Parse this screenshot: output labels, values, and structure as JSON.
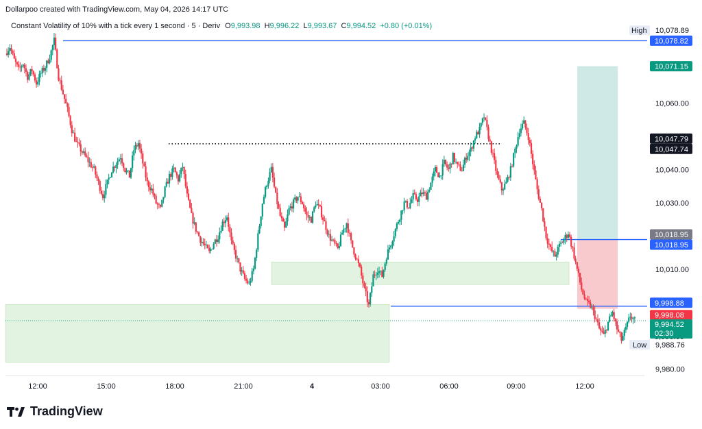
{
  "header": {
    "credit": "Dollarpoo created with TradingView.com, May 04, 2026 14:17 UTC",
    "symbol": "Constant Volatility of 10% with a tick every 1 second · 5 · Deriv",
    "o_label": "O",
    "o_value": "9,993.98",
    "h_label": "H",
    "h_value": "9,996.22",
    "l_label": "L",
    "l_value": "9,993.67",
    "c_label": "C",
    "c_value": "9,994.52",
    "change": "+0.80 (+0.01%)"
  },
  "brand": {
    "name": "TradingView"
  },
  "colors": {
    "up": "#089981",
    "down": "#f23645",
    "blue_line": "#2962ff",
    "profit_zone": "#cfeae6",
    "loss_zone": "#f8c9cd",
    "demand_zone": "#e3f3e1"
  },
  "chart_data": {
    "type": "candlestick",
    "x_ticks": [
      "12:00",
      "15:00",
      "18:00",
      "21:00",
      "4",
      "03:00",
      "06:00",
      "09:00",
      "12:00"
    ],
    "y_ticks": [
      "10,060.00",
      "10,040.00",
      "10,030.00",
      "10,010.00",
      "9,980.00"
    ],
    "ylim": [
      9978,
      10082
    ],
    "y_tick_values": [
      10060,
      10040,
      10030,
      10010,
      9980
    ],
    "high_label": "High",
    "high_value": "10,078.89",
    "low_label": "Low",
    "low_value": "9,988.76",
    "price_labels": {
      "top_line": "10,078.82",
      "take_profit": "10,071.15",
      "dark_1": "10,047.79",
      "dark_2": "10,047.74",
      "entry_gray": "10,018.95",
      "entry_blue": "10,018.95",
      "support_blue": "9,998.88",
      "stop_loss": "9,998.08",
      "last_price": "9,994.52",
      "countdown": "02:30",
      "hidden_partial": "9,990.00"
    },
    "levels": {
      "top_line": 10078.82,
      "take_profit": 10071.15,
      "dotted_high": 10047.79,
      "entry": 10018.95,
      "support": 9998.88,
      "stop_loss": 9998.08,
      "last": 9994.52
    },
    "price_path": [
      10075,
      10077,
      10073,
      10070,
      10072,
      10068,
      10070,
      10066,
      10069,
      10071,
      10074,
      10078.89,
      10068,
      10063,
      10058,
      10052,
      10048,
      10046,
      10044,
      10042,
      10040,
      10036,
      10032,
      10036,
      10040,
      10042,
      10044,
      10040,
      10038,
      10046,
      10048,
      10042,
      10036,
      10034,
      10030,
      10028,
      10034,
      10038,
      10040,
      10037,
      10041,
      10032,
      10026,
      10022,
      10019,
      10017,
      10015,
      10018,
      10020,
      10024,
      10026,
      10018,
      10014,
      10010,
      10007,
      10005.5,
      10010,
      10020,
      10030,
      10036,
      10040,
      10032,
      10026,
      10022,
      10028,
      10030,
      10032,
      10030,
      10026,
      10025,
      10030,
      10028,
      10024,
      10020,
      10018,
      10016,
      10021,
      10024,
      10018,
      10014,
      10010,
      10004,
      9999,
      10008,
      10010,
      10008,
      10014,
      10018,
      10022,
      10026,
      10030,
      10029,
      10032,
      10031,
      10033,
      10032,
      10036,
      10040,
      10038,
      10042,
      10040,
      10044,
      10041,
      10040,
      10044,
      10046,
      10050,
      10052,
      10056,
      10050,
      10044,
      10038,
      10034,
      10036,
      10040,
      10046,
      10052,
      10054,
      10050,
      10042,
      10034,
      10028,
      10020,
      10016,
      10014,
      10017,
      10019,
      10021,
      10016,
      10010,
      10004,
      10000,
      9999,
      9996,
      9992,
      9990,
      9994,
      9997,
      9992,
      9988.76,
      9992,
      9996,
      9994.52
    ]
  }
}
